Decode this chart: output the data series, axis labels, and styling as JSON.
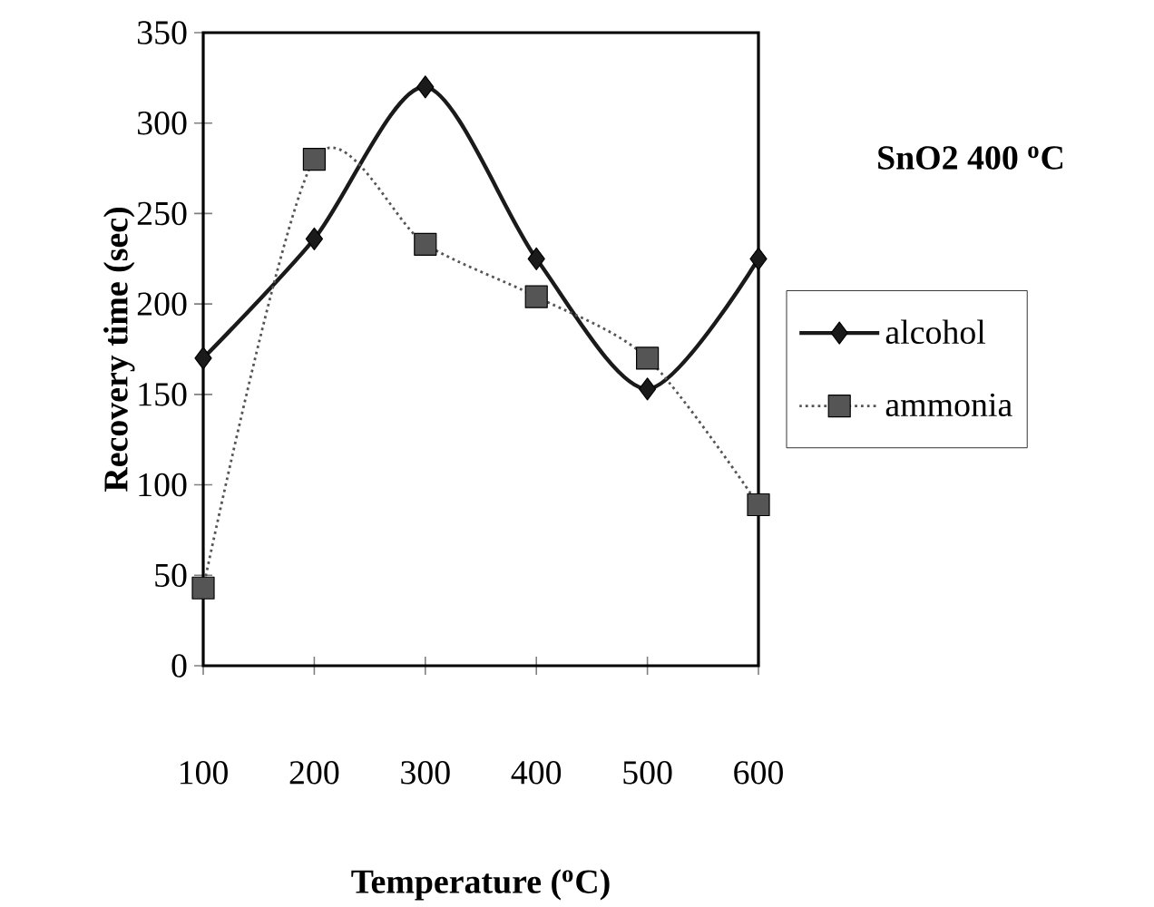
{
  "chart_data": {
    "type": "line",
    "title": "SnO2 400 $^{o}$C",
    "xlabel": "Temperature ($^{o}$C)",
    "ylabel": "Recovery time (sec)",
    "x": [
      100,
      200,
      300,
      400,
      500,
      600
    ],
    "xlim": [
      100,
      600
    ],
    "xticks": [
      100,
      200,
      300,
      400,
      500,
      600
    ],
    "ylim": [
      0,
      350
    ],
    "yticks": [
      0,
      50,
      100,
      150,
      200,
      250,
      300,
      350
    ],
    "legend": "right",
    "series": [
      {
        "name": "alcohol",
        "color": "#1a1a1a",
        "marker": "diamond",
        "line_style": "solid",
        "values": [
          170,
          236,
          320,
          225,
          153,
          225
        ]
      },
      {
        "name": "ammonia",
        "color": "#555555",
        "marker": "square",
        "line_style": "dotted",
        "values": [
          43,
          280,
          233,
          204,
          170,
          89
        ]
      }
    ]
  }
}
